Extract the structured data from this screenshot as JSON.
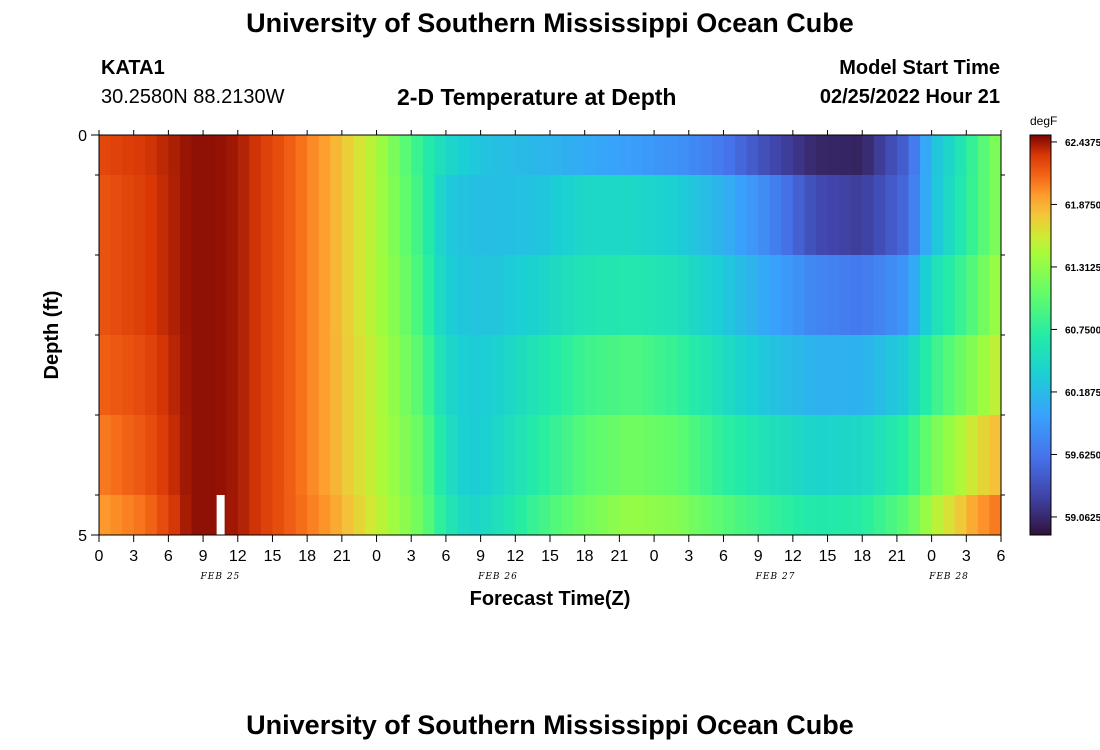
{
  "header": {
    "title": "University of Southern Mississippi Ocean Cube",
    "station": "KATA1",
    "coords": "30.2580N  88.2130W",
    "subtitle": "2-D Temperature at Depth",
    "model_start_label": "Model Start Time",
    "model_start_value": "02/25/2022 Hour 21"
  },
  "footer": {
    "title": "University of Southern Mississippi Ocean Cube"
  },
  "chart_data": {
    "type": "heatmap",
    "title": "2-D Temperature at Depth",
    "xlabel": "Forecast Time(Z)",
    "ylabel": "Depth (ft)",
    "x_tick_labels": [
      "0",
      "3",
      "6",
      "9",
      "12",
      "15",
      "18",
      "21",
      "0",
      "3",
      "6",
      "9",
      "12",
      "15",
      "18",
      "21",
      "0",
      "3",
      "6",
      "9",
      "12",
      "15",
      "18",
      "21",
      "0",
      "3",
      "6"
    ],
    "x_range_hours": [
      0,
      78
    ],
    "x_tick_step_hours": 3,
    "date_labels": [
      {
        "label": "FEB 25",
        "hour": 10.5
      },
      {
        "label": "FEB 26",
        "hour": 34.5
      },
      {
        "label": "FEB 27",
        "hour": 58.5
      },
      {
        "label": "FEB 28",
        "hour": 73.5
      }
    ],
    "y_tick_labels": [
      "0",
      "5"
    ],
    "y_range": [
      0,
      5
    ],
    "depth_layers": [
      {
        "top": 0.0,
        "bottom": 0.5
      },
      {
        "top": 0.5,
        "bottom": 1.5
      },
      {
        "top": 1.5,
        "bottom": 2.5
      },
      {
        "top": 2.5,
        "bottom": 3.5
      },
      {
        "top": 3.5,
        "bottom": 4.5
      },
      {
        "top": 4.5,
        "bottom": 5.0
      }
    ],
    "colorbar": {
      "unit": "degF",
      "min": 58.9,
      "max": 62.5,
      "labels": [
        "62.4375",
        "61.8750",
        "61.3125",
        "60.7500",
        "60.1875",
        "59.6250",
        "59.0625"
      ]
    },
    "profile_hours": [
      0,
      4,
      8,
      10,
      12,
      16,
      20,
      24,
      26,
      28,
      30,
      32,
      34,
      38,
      42,
      46,
      50,
      54,
      58,
      62,
      66,
      70,
      72,
      74,
      76,
      78
    ],
    "temperature_degF": [
      [
        62.25,
        62.32,
        62.46,
        62.46,
        62.42,
        62.2,
        61.9,
        61.45,
        61.1,
        60.75,
        60.45,
        60.3,
        60.22,
        60.15,
        60.05,
        59.95,
        59.85,
        59.65,
        59.3,
        59.05,
        59.02,
        59.5,
        60.2,
        60.5,
        60.9,
        61.3
      ],
      [
        62.2,
        62.3,
        62.46,
        62.46,
        62.42,
        62.2,
        61.9,
        61.45,
        61.15,
        60.8,
        60.3,
        60.22,
        60.2,
        60.25,
        60.45,
        60.45,
        60.35,
        60.1,
        59.75,
        59.3,
        59.2,
        59.55,
        60.2,
        60.55,
        60.9,
        61.3
      ],
      [
        62.2,
        62.3,
        62.46,
        62.46,
        62.42,
        62.2,
        61.9,
        61.45,
        61.2,
        60.85,
        60.35,
        60.25,
        60.25,
        60.4,
        60.6,
        60.65,
        60.55,
        60.3,
        60.0,
        59.75,
        59.65,
        59.9,
        60.5,
        60.75,
        61.05,
        61.45
      ],
      [
        62.15,
        62.25,
        62.46,
        62.46,
        62.42,
        62.2,
        61.9,
        61.5,
        61.25,
        60.95,
        60.45,
        60.3,
        60.35,
        60.6,
        60.85,
        60.95,
        60.8,
        60.5,
        60.25,
        60.1,
        60.1,
        60.35,
        60.8,
        61.05,
        61.3,
        61.6
      ],
      [
        62.05,
        62.2,
        62.46,
        62.46,
        62.42,
        62.2,
        61.9,
        61.5,
        61.3,
        61.05,
        60.55,
        60.3,
        60.4,
        60.7,
        61.0,
        61.15,
        61.05,
        60.75,
        60.55,
        60.4,
        60.45,
        60.75,
        61.15,
        61.4,
        61.65,
        61.85
      ],
      [
        61.95,
        62.1,
        62.46,
        62.46,
        62.42,
        62.2,
        61.95,
        61.55,
        61.35,
        61.1,
        60.65,
        60.4,
        60.5,
        60.85,
        61.15,
        61.35,
        61.25,
        61.0,
        60.8,
        60.65,
        60.7,
        61.05,
        61.45,
        61.7,
        61.95,
        62.1
      ]
    ],
    "marker": {
      "hour": 10.0,
      "depth_top": 4.5,
      "depth_bottom": 5.0,
      "color": "#ffffff"
    },
    "grid": false,
    "legend_placement": "right"
  }
}
